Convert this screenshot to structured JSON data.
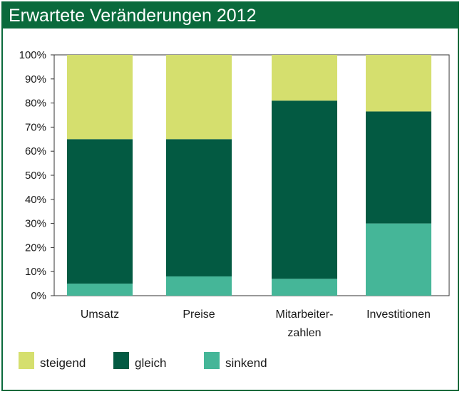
{
  "header": {
    "title": "Erwartete Veränderungen 2012"
  },
  "colors": {
    "steigend": "#d5df6e",
    "gleich": "#035a42",
    "sinkend": "#45b698",
    "frame": "#0a6a3c"
  },
  "chart_data": {
    "type": "bar",
    "stacked": true,
    "categories": [
      "Umsatz",
      "Preise",
      "Mitarbeiter-\nzahlen",
      "Investitionen"
    ],
    "series": [
      {
        "name": "sinkend",
        "values": [
          5,
          8,
          7,
          30
        ]
      },
      {
        "name": "gleich",
        "values": [
          60,
          57,
          74,
          46.5
        ]
      },
      {
        "name": "steigend",
        "values": [
          35,
          35,
          19,
          23.5
        ]
      }
    ],
    "yticks": [
      "0%",
      "10%",
      "20%",
      "30%",
      "40%",
      "50%",
      "60%",
      "70%",
      "80%",
      "90%",
      "100%"
    ],
    "ylim": [
      0,
      100
    ],
    "legend": [
      "steigend",
      "gleich",
      "sinkend"
    ],
    "legend_position": "bottom-left"
  }
}
